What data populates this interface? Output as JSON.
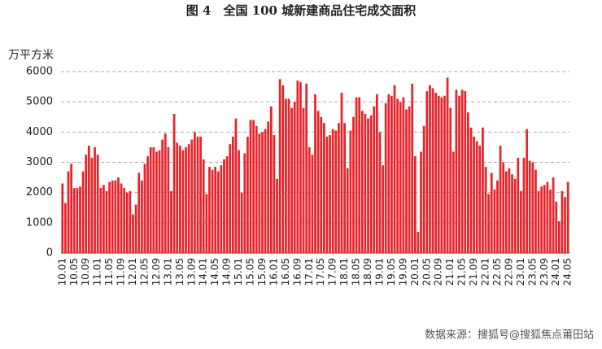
{
  "chart_data": {
    "type": "bar",
    "title": "图 4　全国 100 城新建商品住宅成交面积",
    "y_label": "万平方米",
    "source": "数据来源：搜狐号@搜狐焦点莆田站",
    "color": "#e8242a",
    "grid": true,
    "ylim": [
      0,
      6000
    ],
    "yticks": [
      0,
      1000,
      2000,
      3000,
      4000,
      5000,
      6000
    ],
    "categories": [
      "10.01",
      null,
      null,
      null,
      "10.05",
      null,
      null,
      null,
      "10.09",
      null,
      null,
      null,
      "11.01",
      null,
      null,
      null,
      "11.05",
      null,
      null,
      null,
      "11.09",
      null,
      null,
      null,
      "12.01",
      null,
      null,
      null,
      "12.05",
      null,
      null,
      null,
      "12.09",
      null,
      null,
      null,
      "13.01",
      null,
      null,
      null,
      "13.05",
      null,
      null,
      null,
      "13.09",
      null,
      null,
      null,
      "14.01",
      null,
      null,
      null,
      "14.05",
      null,
      null,
      null,
      "14.09",
      null,
      null,
      null,
      "15.01",
      null,
      null,
      null,
      "15.05",
      null,
      null,
      null,
      "15.09",
      null,
      null,
      null,
      "16.01",
      null,
      null,
      null,
      "16.05",
      null,
      null,
      null,
      "16.09",
      null,
      null,
      null,
      "17.01",
      null,
      null,
      null,
      "17.05",
      null,
      null,
      null,
      "17.09",
      null,
      null,
      null,
      "18.01",
      null,
      null,
      null,
      "18.05",
      null,
      null,
      null,
      "18.09",
      null,
      null,
      null,
      "19.01",
      null,
      null,
      null,
      "19.05",
      null,
      null,
      null,
      "19.09",
      null,
      null,
      null,
      "20.01",
      null,
      null,
      null,
      "20.05",
      null,
      null,
      null,
      "20.09",
      null,
      null,
      null,
      "21.01",
      null,
      null,
      null,
      "21.05",
      null,
      null,
      null,
      "21.09",
      null,
      null,
      null,
      "22.01",
      null,
      null,
      null,
      "22.05",
      null,
      null,
      null,
      "22.09",
      null,
      null,
      null,
      "23.01",
      null,
      null,
      null,
      "23.05",
      null,
      null,
      null,
      "23.09",
      null,
      null,
      null,
      "24.01",
      null,
      null,
      null,
      "24.05"
    ],
    "values": [
      2300,
      1650,
      2700,
      2950,
      2150,
      2150,
      2200,
      2700,
      3250,
      3550,
      3150,
      3500,
      3250,
      2150,
      2250,
      2050,
      2350,
      2400,
      2400,
      2500,
      2300,
      2150,
      2000,
      2050,
      1280,
      1600,
      2650,
      2400,
      2950,
      3200,
      3500,
      3500,
      3350,
      3400,
      3750,
      3950,
      3500,
      2050,
      4600,
      3650,
      3550,
      3400,
      3500,
      3600,
      3750,
      4000,
      3850,
      3850,
      3100,
      1950,
      2850,
      2750,
      2850,
      2700,
      2900,
      3100,
      3200,
      3600,
      3850,
      4450,
      3400,
      2000,
      3300,
      3850,
      4400,
      4400,
      4200,
      3950,
      4000,
      4100,
      4350,
      4850,
      3900,
      2450,
      5750,
      5550,
      5100,
      5100,
      4800,
      5000,
      5700,
      5650,
      4800,
      5600,
      3500,
      3250,
      5250,
      4700,
      4500,
      4300,
      3850,
      3900,
      4100,
      4050,
      4300,
      5300,
      4300,
      2800,
      4050,
      4500,
      5150,
      5150,
      4700,
      4600,
      4450,
      4550,
      4850,
      5250,
      4000,
      2900,
      4950,
      5250,
      5200,
      5550,
      5100,
      5000,
      5150,
      4750,
      4850,
      5600,
      3200,
      700,
      3350,
      4200,
      5350,
      5550,
      5450,
      5300,
      5200,
      5150,
      5200,
      5800,
      4800,
      3350,
      5400,
      5200,
      5400,
      5350,
      4650,
      4150,
      3850,
      3700,
      3550,
      4150,
      2850,
      1950,
      2650,
      2100,
      2400,
      3550,
      3000,
      2700,
      2800,
      2600,
      2450,
      3150,
      2050,
      3150,
      4100,
      3050,
      3000,
      2750,
      2050,
      2200,
      2250,
      2350,
      2100,
      2500,
      1700,
      1050,
      2050,
      1850,
      2350
    ]
  }
}
